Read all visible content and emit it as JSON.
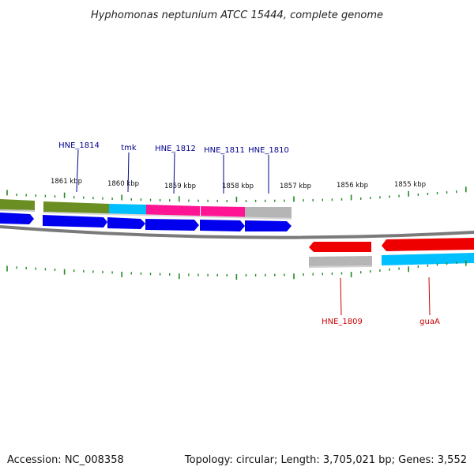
{
  "title": "Hyphomonas neptunium ATCC 15444, complete genome",
  "footer": {
    "accession": "Accession: NC_008358",
    "summary": "Topology: circular; Length: 3,705,021 bp; Genes: 3,552"
  },
  "scale_labels": [
    "1861 kbp",
    "1860 kbp",
    "1859 kbp",
    "1858 kbp",
    "1857 kbp",
    "1856 kbp",
    "1855 kbp"
  ],
  "genes_top": [
    "HNE_1814",
    "tmk",
    "HNE_1812",
    "HNE_1811",
    "HNE_1810"
  ],
  "genes_bottom": [
    "HNE_1809",
    "guaA"
  ],
  "colors": {
    "forward_label": "#00008b",
    "reverse_label": "#cc0000",
    "cds_forward": "#0000ee",
    "cds_reverse": "#ee0000",
    "olive": "#6b8e23",
    "cyan": "#00bfff",
    "magenta": "#ff1493",
    "gray": "#b5b5b5",
    "tick": "#228b22",
    "backbone": "#808080"
  }
}
